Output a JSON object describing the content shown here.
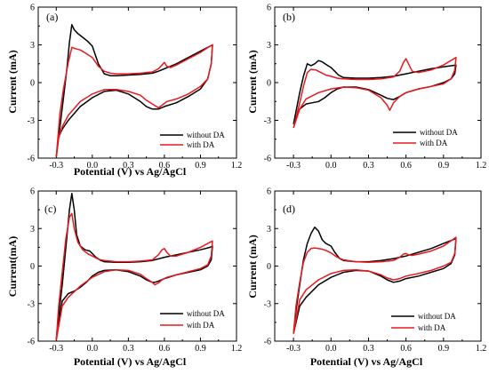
{
  "chart_data": [
    {
      "type": "line",
      "panel": "(a)",
      "xlabel": "Potential (V) vs Ag/AgCl",
      "ylabel": "Current (mA)",
      "xlim": [
        -0.45,
        1.2
      ],
      "ylim": [
        -6,
        6
      ],
      "xticks": [
        "-0.3",
        "0.0",
        "0.3",
        "0.6",
        "0.9",
        "1.2"
      ],
      "yticks": [
        "-6",
        "-3",
        "0",
        "3",
        "6"
      ],
      "legend": "bottom-right",
      "series": [
        {
          "name": "without DA",
          "color": "#000000",
          "x": [
            -0.3,
            -0.27,
            -0.24,
            -0.21,
            -0.19,
            -0.17,
            -0.15,
            -0.12,
            -0.08,
            -0.04,
            0.0,
            0.05,
            0.1,
            0.15,
            0.2,
            0.3,
            0.4,
            0.5,
            0.55,
            0.6,
            0.7,
            0.8,
            0.9,
            0.98,
            1.0,
            0.99,
            0.96,
            0.9,
            0.8,
            0.7,
            0.6,
            0.55,
            0.5,
            0.45,
            0.4,
            0.3,
            0.2,
            0.1,
            0.0,
            -0.1,
            -0.2,
            -0.25,
            -0.28,
            -0.3
          ],
          "y": [
            -5.9,
            -3.6,
            -1.2,
            1.2,
            3.2,
            4.6,
            4.2,
            3.9,
            3.6,
            3.3,
            2.9,
            1.5,
            0.7,
            0.55,
            0.55,
            0.6,
            0.65,
            0.75,
            0.9,
            1.1,
            1.5,
            2.0,
            2.5,
            2.9,
            3.0,
            1.5,
            0.3,
            -0.5,
            -1.1,
            -1.6,
            -1.9,
            -2.1,
            -2.1,
            -1.9,
            -1.5,
            -0.9,
            -0.6,
            -0.7,
            -1.2,
            -1.9,
            -3.0,
            -3.7,
            -4.3,
            -5.9
          ]
        },
        {
          "name": "with DA",
          "color": "#e8191e",
          "x": [
            -0.3,
            -0.27,
            -0.24,
            -0.2,
            -0.17,
            -0.14,
            -0.1,
            -0.05,
            0.0,
            0.05,
            0.1,
            0.15,
            0.2,
            0.3,
            0.4,
            0.5,
            0.55,
            0.58,
            0.6,
            0.62,
            0.65,
            0.7,
            0.8,
            0.9,
            0.98,
            1.0,
            0.99,
            0.96,
            0.9,
            0.8,
            0.7,
            0.62,
            0.58,
            0.55,
            0.5,
            0.45,
            0.4,
            0.3,
            0.2,
            0.1,
            0.0,
            -0.1,
            -0.2,
            -0.25,
            -0.28,
            -0.3
          ],
          "y": [
            -5.9,
            -2.5,
            -0.5,
            1.6,
            2.8,
            2.7,
            2.6,
            2.3,
            2.0,
            1.3,
            0.9,
            0.75,
            0.7,
            0.7,
            0.75,
            0.85,
            1.1,
            1.4,
            1.6,
            1.3,
            1.2,
            1.4,
            1.9,
            2.4,
            2.9,
            3.0,
            1.5,
            0.3,
            -0.3,
            -0.9,
            -1.3,
            -1.5,
            -1.8,
            -2.0,
            -1.7,
            -1.4,
            -1.0,
            -0.7,
            -0.55,
            -0.55,
            -0.9,
            -1.5,
            -2.6,
            -3.5,
            -4.4,
            -5.9
          ]
        }
      ]
    },
    {
      "type": "line",
      "panel": "(b)",
      "xlabel": "",
      "ylabel": "Current (mA)",
      "xlim": [
        -0.45,
        1.2
      ],
      "ylim": [
        -6,
        6
      ],
      "xticks": [
        "-0.3",
        "0.0",
        "0.3",
        "0.6",
        "0.9",
        "1.2"
      ],
      "yticks": [
        "-6",
        "-3",
        "0",
        "3",
        "6"
      ],
      "legend": "bottom-right",
      "series": [
        {
          "name": "without DA",
          "color": "#000000",
          "x": [
            -0.3,
            -0.28,
            -0.25,
            -0.22,
            -0.19,
            -0.16,
            -0.13,
            -0.1,
            -0.07,
            -0.04,
            0.0,
            0.03,
            0.06,
            0.1,
            0.2,
            0.3,
            0.4,
            0.5,
            0.6,
            0.7,
            0.8,
            0.9,
            1.0,
            0.99,
            0.96,
            0.9,
            0.8,
            0.7,
            0.6,
            0.55,
            0.5,
            0.45,
            0.4,
            0.3,
            0.2,
            0.1,
            0.05,
            0.0,
            -0.05,
            -0.1,
            -0.15,
            -0.2,
            -0.25,
            -0.3
          ],
          "y": [
            -3.3,
            -2.3,
            -0.8,
            0.5,
            1.5,
            1.35,
            1.5,
            1.75,
            1.65,
            1.45,
            1.2,
            0.9,
            0.6,
            0.4,
            0.35,
            0.35,
            0.4,
            0.5,
            0.7,
            0.9,
            1.1,
            1.25,
            1.4,
            0.7,
            0.3,
            0.0,
            -0.3,
            -0.5,
            -0.8,
            -1.1,
            -1.35,
            -1.25,
            -1.0,
            -0.55,
            -0.35,
            -0.35,
            -0.5,
            -0.8,
            -1.2,
            -1.5,
            -1.6,
            -1.7,
            -2.1,
            -3.3
          ]
        },
        {
          "name": "with DA",
          "color": "#e8191e",
          "x": [
            -0.3,
            -0.28,
            -0.25,
            -0.22,
            -0.19,
            -0.16,
            -0.12,
            -0.08,
            -0.04,
            0.0,
            0.05,
            0.1,
            0.2,
            0.3,
            0.4,
            0.5,
            0.55,
            0.58,
            0.6,
            0.62,
            0.65,
            0.7,
            0.8,
            0.9,
            1.0,
            0.99,
            0.96,
            0.9,
            0.8,
            0.7,
            0.6,
            0.55,
            0.5,
            0.47,
            0.45,
            0.4,
            0.3,
            0.2,
            0.1,
            0.0,
            -0.1,
            -0.2,
            -0.25,
            -0.3
          ],
          "y": [
            -3.6,
            -2.8,
            -1.6,
            -0.3,
            0.8,
            1.05,
            1.0,
            0.8,
            0.6,
            0.5,
            0.35,
            0.3,
            0.25,
            0.25,
            0.3,
            0.45,
            0.9,
            1.6,
            1.9,
            1.5,
            0.9,
            0.8,
            1.0,
            1.4,
            2.0,
            1.0,
            0.3,
            -0.1,
            -0.3,
            -0.5,
            -0.8,
            -1.1,
            -1.6,
            -2.2,
            -1.8,
            -1.2,
            -0.6,
            -0.4,
            -0.35,
            -0.5,
            -0.8,
            -1.3,
            -2.1,
            -3.6
          ]
        }
      ]
    },
    {
      "type": "line",
      "panel": "(c)",
      "xlabel": "Potential (V) vs Ag/AgCl",
      "ylabel": "Current(mA)",
      "xlim": [
        -0.45,
        1.2
      ],
      "ylim": [
        -6,
        6
      ],
      "xticks": [
        "-0.3",
        "0.0",
        "0.3",
        "0.6",
        "0.9",
        "1.2"
      ],
      "yticks": [
        "-6",
        "-3",
        "0",
        "3",
        "6"
      ],
      "legend": "bottom-right",
      "series": [
        {
          "name": "without DA",
          "color": "#000000",
          "x": [
            -0.3,
            -0.28,
            -0.25,
            -0.22,
            -0.19,
            -0.17,
            -0.15,
            -0.13,
            -0.1,
            -0.06,
            -0.02,
            0.0,
            0.03,
            0.07,
            0.1,
            0.2,
            0.3,
            0.4,
            0.5,
            0.6,
            0.7,
            0.8,
            0.9,
            0.98,
            1.0,
            0.99,
            0.96,
            0.9,
            0.8,
            0.7,
            0.6,
            0.55,
            0.52,
            0.5,
            0.45,
            0.4,
            0.3,
            0.2,
            0.1,
            0.05,
            0.0,
            -0.05,
            -0.1,
            -0.15,
            -0.2,
            -0.25,
            -0.3
          ],
          "y": [
            -5.9,
            -4.0,
            -1.5,
            1.5,
            4.5,
            5.8,
            4.5,
            2.5,
            1.6,
            1.3,
            1.2,
            1.0,
            0.7,
            0.45,
            0.35,
            0.3,
            0.3,
            0.35,
            0.45,
            0.7,
            0.9,
            1.1,
            1.3,
            1.5,
            1.6,
            0.5,
            0.0,
            -0.3,
            -0.5,
            -0.7,
            -1.0,
            -1.2,
            -1.3,
            -1.3,
            -1.1,
            -0.8,
            -0.45,
            -0.3,
            -0.35,
            -0.5,
            -0.8,
            -1.3,
            -1.7,
            -2.0,
            -2.2,
            -2.8,
            -5.9
          ]
        },
        {
          "name": "with DA",
          "color": "#e8191e",
          "x": [
            -0.3,
            -0.28,
            -0.25,
            -0.22,
            -0.19,
            -0.17,
            -0.15,
            -0.12,
            -0.08,
            -0.04,
            0.0,
            0.05,
            0.1,
            0.2,
            0.3,
            0.4,
            0.5,
            0.55,
            0.58,
            0.6,
            0.62,
            0.65,
            0.7,
            0.8,
            0.9,
            0.98,
            1.0,
            0.99,
            0.96,
            0.9,
            0.8,
            0.7,
            0.62,
            0.58,
            0.55,
            0.52,
            0.5,
            0.45,
            0.4,
            0.3,
            0.2,
            0.1,
            0.0,
            -0.1,
            -0.2,
            -0.25,
            -0.3
          ],
          "y": [
            -5.9,
            -3.2,
            -0.5,
            2.2,
            3.9,
            4.2,
            3.0,
            1.9,
            1.3,
            1.0,
            0.8,
            0.55,
            0.45,
            0.35,
            0.35,
            0.4,
            0.5,
            0.9,
            1.3,
            1.4,
            1.1,
            0.8,
            0.8,
            1.1,
            1.5,
            1.9,
            2.0,
            0.8,
            0.1,
            -0.2,
            -0.45,
            -0.7,
            -0.9,
            -1.1,
            -1.35,
            -1.5,
            -1.3,
            -1.0,
            -0.65,
            -0.35,
            -0.3,
            -0.45,
            -0.9,
            -1.6,
            -2.5,
            -3.2,
            -5.9
          ]
        }
      ]
    },
    {
      "type": "line",
      "panel": "(d)",
      "xlabel": "Potential (V) vs Ag/AgCl",
      "ylabel": "Current (mA)",
      "xlim": [
        -0.45,
        1.2
      ],
      "ylim": [
        -6,
        6
      ],
      "xticks": [
        "-0.3",
        "0.0",
        "0.3",
        "0.6",
        "0.9",
        "1.2"
      ],
      "yticks": [
        "-6",
        "-3",
        "0",
        "3",
        "6"
      ],
      "legend": "bottom-right",
      "series": [
        {
          "name": "without DA",
          "color": "#000000",
          "x": [
            -0.3,
            -0.28,
            -0.25,
            -0.22,
            -0.19,
            -0.16,
            -0.13,
            -0.1,
            -0.07,
            -0.04,
            0.0,
            0.03,
            0.07,
            0.1,
            0.2,
            0.3,
            0.4,
            0.5,
            0.6,
            0.7,
            0.8,
            0.9,
            1.0,
            0.99,
            0.96,
            0.9,
            0.8,
            0.7,
            0.6,
            0.55,
            0.5,
            0.45,
            0.4,
            0.3,
            0.2,
            0.1,
            0.0,
            -0.1,
            -0.15,
            -0.2,
            -0.25,
            -0.3
          ],
          "y": [
            -5.4,
            -3.6,
            -1.5,
            0.5,
            1.8,
            2.6,
            3.1,
            2.8,
            2.1,
            1.8,
            1.6,
            1.1,
            0.6,
            0.45,
            0.35,
            0.35,
            0.45,
            0.6,
            0.8,
            1.1,
            1.4,
            1.8,
            2.2,
            0.9,
            0.2,
            -0.2,
            -0.5,
            -0.8,
            -1.0,
            -1.2,
            -1.3,
            -1.1,
            -0.8,
            -0.4,
            -0.35,
            -0.5,
            -0.9,
            -1.5,
            -2.0,
            -2.5,
            -3.2,
            -5.4
          ]
        },
        {
          "name": "with DA",
          "color": "#e8191e",
          "x": [
            -0.3,
            -0.28,
            -0.25,
            -0.22,
            -0.19,
            -0.16,
            -0.13,
            -0.1,
            -0.07,
            -0.04,
            0.0,
            0.05,
            0.1,
            0.2,
            0.3,
            0.4,
            0.5,
            0.55,
            0.58,
            0.6,
            0.62,
            0.65,
            0.7,
            0.8,
            0.9,
            1.0,
            0.99,
            0.96,
            0.9,
            0.8,
            0.7,
            0.6,
            0.55,
            0.5,
            0.45,
            0.4,
            0.3,
            0.2,
            0.1,
            0.0,
            -0.1,
            -0.2,
            -0.25,
            -0.3
          ],
          "y": [
            -5.4,
            -3.2,
            -1.3,
            0.3,
            1.1,
            1.4,
            1.45,
            1.4,
            1.35,
            1.25,
            1.05,
            0.7,
            0.5,
            0.35,
            0.3,
            0.35,
            0.45,
            0.7,
            0.95,
            1.0,
            0.9,
            0.85,
            0.95,
            1.2,
            1.6,
            2.3,
            1.0,
            0.3,
            0.0,
            -0.35,
            -0.6,
            -0.8,
            -1.0,
            -1.1,
            -0.95,
            -0.7,
            -0.4,
            -0.3,
            -0.35,
            -0.6,
            -1.1,
            -1.9,
            -2.7,
            -5.4
          ]
        }
      ]
    }
  ]
}
